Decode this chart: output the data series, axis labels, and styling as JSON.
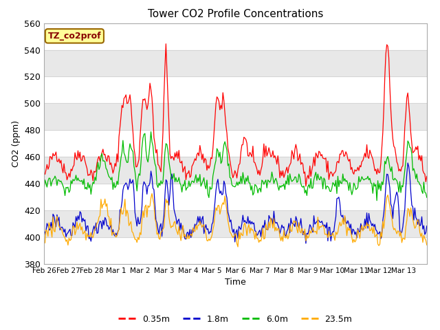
{
  "title": "Tower CO2 Profile Concentrations",
  "xlabel": "Time",
  "ylabel": "CO2 (ppm)",
  "ylim": [
    380,
    560
  ],
  "yticks": [
    380,
    400,
    420,
    440,
    460,
    480,
    500,
    520,
    540,
    560
  ],
  "xtick_labels": [
    "Feb 26",
    "Feb 27",
    "Feb 28",
    "Mar 1",
    "Mar 2",
    "Mar 3",
    "Mar 4",
    "Mar 5",
    "Mar 6",
    "Mar 7",
    "Mar 8",
    "Mar 9",
    "Mar 10",
    "Mar 11",
    "Mar 12",
    "Mar 13"
  ],
  "series_colors": [
    "#ff0000",
    "#0000cc",
    "#00bb00",
    "#ffaa00"
  ],
  "series_labels": [
    "0.35m",
    "1.8m",
    "6.0m",
    "23.5m"
  ],
  "annotation_text": "TZ_co2prof",
  "annotation_bg": "#ffff99",
  "annotation_edge": "#996600",
  "annotation_text_color": "#880000",
  "band_color": "#e8e8e8",
  "band_ranges": [
    [
      400,
      420
    ],
    [
      440,
      460
    ],
    [
      480,
      500
    ],
    [
      520,
      540
    ]
  ],
  "figsize": [
    6.4,
    4.8
  ],
  "dpi": 100
}
